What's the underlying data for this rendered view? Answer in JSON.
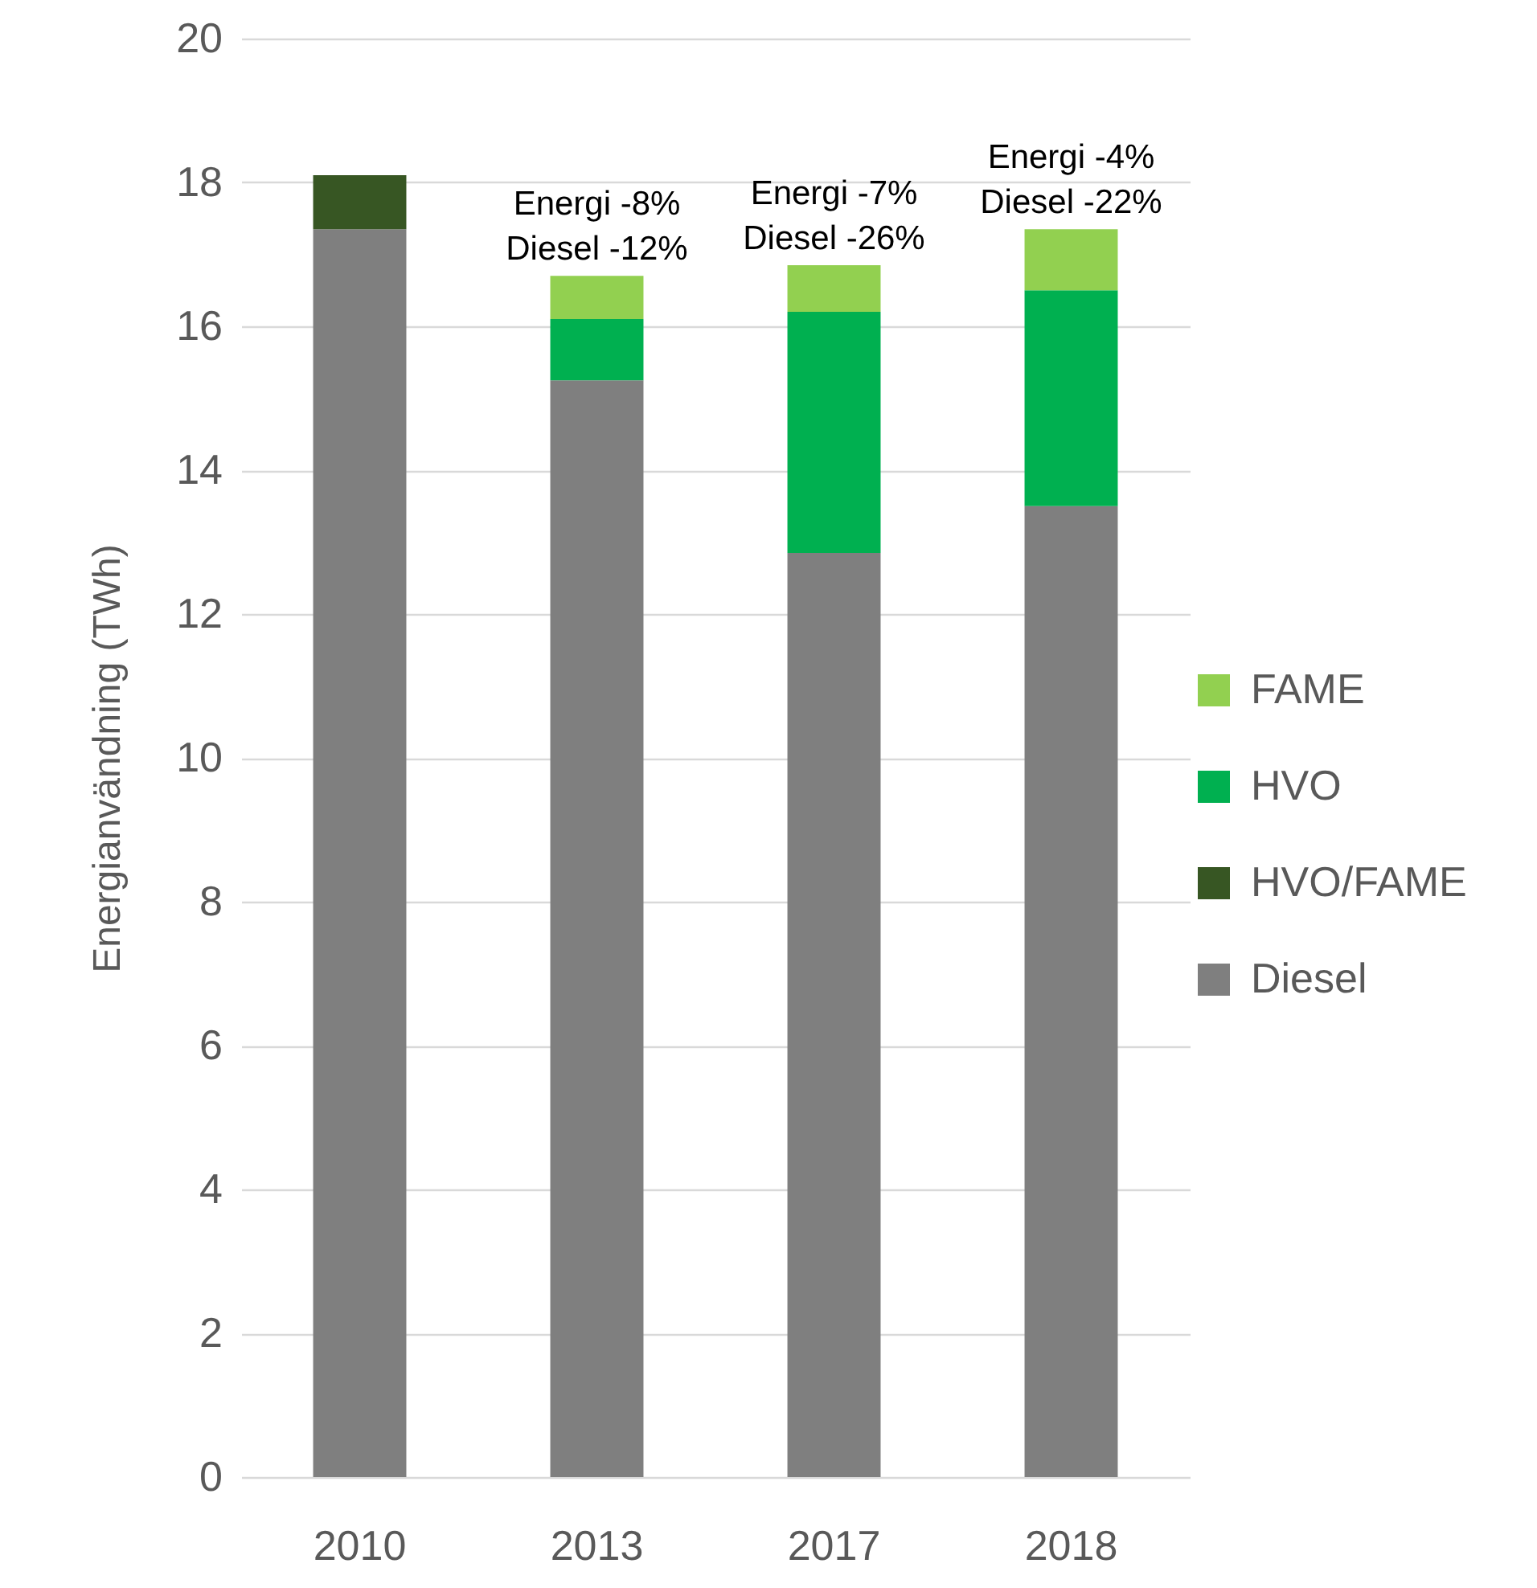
{
  "chart_data": {
    "type": "bar",
    "stacked": true,
    "ylabel": "Energianvändning (TWh)",
    "categories": [
      "2010",
      "2013",
      "2017",
      "2018"
    ],
    "series": [
      {
        "name": "Diesel",
        "color": "#7f7f7f",
        "values": [
          17.35,
          15.25,
          12.85,
          13.5
        ]
      },
      {
        "name": "HVO/FAME",
        "color": "#375623",
        "values": [
          0.75,
          null,
          null,
          null
        ]
      },
      {
        "name": "HVO",
        "color": "#00b050",
        "values": [
          null,
          0.85,
          3.35,
          3.0
        ]
      },
      {
        "name": "FAME",
        "color": "#92d050",
        "values": [
          null,
          0.6,
          0.65,
          0.85
        ]
      }
    ],
    "ylim": [
      0,
      20
    ],
    "yticks": [
      0,
      2,
      4,
      6,
      8,
      10,
      12,
      14,
      16,
      18,
      20
    ],
    "grid": "y",
    "legend": "right",
    "annotations": [
      {
        "text": "Energi -8%\nDiesel -12%",
        "x": "2013",
        "y": 16.7
      },
      {
        "text": "Energi -7%\nDiesel -26%",
        "x": "2017",
        "y": 16.85
      },
      {
        "text": "Energi -4%\nDiesel -22%",
        "x": "2018",
        "y": 17.35
      }
    ]
  }
}
